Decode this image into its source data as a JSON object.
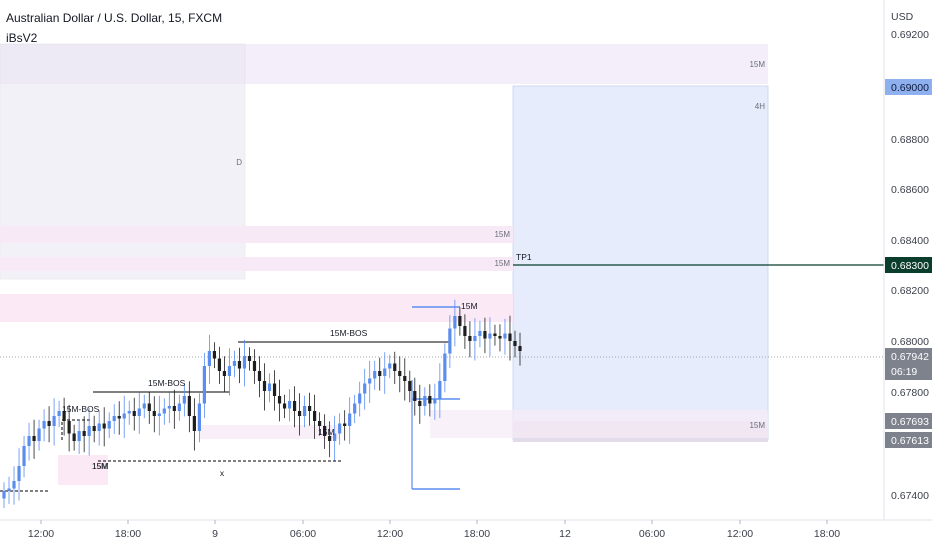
{
  "header": {
    "title": "Australian Dollar / U.S. Dollar, 15, FXCM",
    "indicator": "iBsV2"
  },
  "colors": {
    "up": "#5b8def",
    "down": "#1e1e1e",
    "price_line": "#0b3d2c",
    "bos_line": "#000000",
    "ob_line": "#5b8def",
    "axis_text": "#3b3f4a"
  },
  "chart_data": {
    "type": "candlestick",
    "currency_label": "USD",
    "y_ticks": [
      "0.69200",
      "0.69000",
      "0.68800",
      "0.68600",
      "0.68400",
      "0.68200",
      "0.68000",
      "0.67800",
      "0.67400"
    ],
    "x_ticks": [
      "12:00",
      "18:00",
      "9",
      "06:00",
      "12:00",
      "18:00",
      "12",
      "06:00",
      "12:00",
      "18:00"
    ],
    "ylim": [
      0.6727,
      0.6934
    ],
    "price_badges": [
      {
        "value": "0.69000",
        "style": "light-blue"
      },
      {
        "value": "0.68300",
        "style": "dark-green"
      },
      {
        "value": "0.67942",
        "sub": "06:19",
        "style": "gray"
      },
      {
        "value": "0.67693",
        "style": "gray"
      },
      {
        "value": "0.67613",
        "style": "gray"
      }
    ],
    "series": [
      {
        "name": "AUDUSD",
        "close_path": [
          0.674,
          0.6741,
          0.6744,
          0.675,
          0.6758,
          0.6762,
          0.676,
          0.6765,
          0.6768,
          0.6766,
          0.677,
          0.6772,
          0.6768,
          0.6763,
          0.676,
          0.6764,
          0.6762,
          0.6766,
          0.6764,
          0.6767,
          0.6765,
          0.6768,
          0.677,
          0.6769,
          0.6771,
          0.6772,
          0.677,
          0.6773,
          0.6775,
          0.6772,
          0.677,
          0.6771,
          0.6773,
          0.6774,
          0.6772,
          0.6775,
          0.6778,
          0.677,
          0.6764,
          0.6775,
          0.679,
          0.6796,
          0.6793,
          0.6788,
          0.6786,
          0.679,
          0.6792,
          0.6789,
          0.6794,
          0.6792,
          0.6788,
          0.6784,
          0.678,
          0.6783,
          0.6778,
          0.6775,
          0.6773,
          0.6776,
          0.6772,
          0.677,
          0.6774,
          0.6772,
          0.6768,
          0.6766,
          0.6762,
          0.676,
          0.6763,
          0.6767,
          0.6766,
          0.6771,
          0.6775,
          0.6779,
          0.6783,
          0.6785,
          0.6788,
          0.6786,
          0.6789,
          0.6791,
          0.6788,
          0.6786,
          0.6784,
          0.678,
          0.6776,
          0.6774,
          0.6778,
          0.6775,
          0.6777,
          0.6784,
          0.6795,
          0.6805,
          0.681,
          0.6806,
          0.6802,
          0.68,
          0.6802,
          0.6804,
          0.6801,
          0.6803,
          0.6802,
          0.6801,
          0.6803,
          0.68,
          0.6798,
          0.6796
        ]
      }
    ],
    "zones": [
      {
        "label": "15M"
      },
      {
        "label": "4H"
      },
      {
        "label": "D"
      },
      {
        "label": "15M"
      },
      {
        "label": "15M"
      },
      {
        "label": "15M"
      },
      {
        "label": "15M"
      },
      {
        "label": "15M"
      }
    ],
    "annotations": [
      {
        "text": "15M-BOS"
      },
      {
        "text": "15M-BOS"
      },
      {
        "text": "15M-BOS"
      },
      {
        "text": "15M"
      },
      {
        "text": "15M"
      },
      {
        "text": "15M"
      },
      {
        "text": "TP1"
      },
      {
        "text": "x"
      }
    ]
  }
}
